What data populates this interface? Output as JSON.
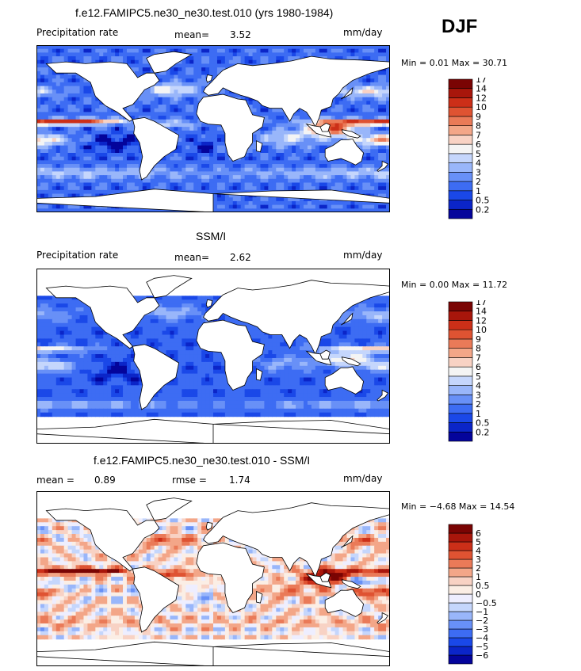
{
  "season": "DJF",
  "colors": {
    "seq": [
      "#04049b",
      "#0b25c8",
      "#1a48e8",
      "#3d6cf3",
      "#6890f7",
      "#99b6fa",
      "#c5d6fc",
      "#f4f4f4",
      "#f8d2c4",
      "#f3a688",
      "#ea7a58",
      "#df5332",
      "#cc2f18",
      "#a8160b",
      "#7a0403"
    ],
    "diff": [
      "#04049b",
      "#0b25c8",
      "#1a48e8",
      "#3d6cf3",
      "#6890f7",
      "#99b6fa",
      "#c5d6fc",
      "#eeeeff",
      "#fbeee5",
      "#f8d2c4",
      "#f3a688",
      "#ea7a58",
      "#df5332",
      "#cc2f18",
      "#a8160b",
      "#7a0403"
    ],
    "land": "#ffffff"
  },
  "panels": [
    {
      "title": "f.e12.FAMIPC5.ne30_ne30.test.010 (yrs 1980-1984)",
      "left_label": "Precipitation rate",
      "stat_label": "mean=",
      "stat_value": "3.52",
      "units": "mm/day",
      "min_text": "Min =    0.01 Max =   30.71"
    },
    {
      "title": "SSM/I",
      "left_label": "Precipitation rate",
      "stat_label": "mean=",
      "stat_value": "2.62",
      "units": "mm/day",
      "min_text": "Min =    0.00 Max =   11.72"
    },
    {
      "title": "f.e12.FAMIPC5.ne30_ne30.test.010 - SSM/I",
      "left_label": "mean =",
      "left_value": "0.89",
      "stat_label": "rmse =",
      "stat_value": "1.74",
      "units": "mm/day",
      "min_text": "Min =  −4.68 Max =   14.54"
    }
  ],
  "chart_data": [
    {
      "type": "heatmap",
      "title": "f.e12.FAMIPC5.ne30_ne30.test.010 (yrs 1980-1984)",
      "variable": "Precipitation rate",
      "units": "mm/day",
      "mean": 3.52,
      "min": 0.01,
      "max": 30.71,
      "colorbar_levels": [
        "0.2",
        "0.5",
        "1",
        "2",
        "3",
        "4",
        "5",
        "6",
        "7",
        "8",
        "9",
        "10",
        "12",
        "14",
        "17"
      ]
    },
    {
      "type": "heatmap",
      "title": "SSM/I",
      "variable": "Precipitation rate",
      "units": "mm/day",
      "mean": 2.62,
      "min": 0.0,
      "max": 11.72,
      "colorbar_levels": [
        "0.2",
        "0.5",
        "1",
        "2",
        "3",
        "4",
        "5",
        "6",
        "7",
        "8",
        "9",
        "10",
        "12",
        "14",
        "17"
      ]
    },
    {
      "type": "heatmap",
      "title": "f.e12.FAMIPC5.ne30_ne30.test.010 - SSM/I",
      "units": "mm/day",
      "mean": 0.89,
      "rmse": 1.74,
      "min": -4.68,
      "max": 14.54,
      "colorbar_levels": [
        "−6",
        "−5",
        "−4",
        "−3",
        "−2",
        "−1",
        "−0.5",
        "0",
        "0.5",
        "1",
        "2",
        "3",
        "4",
        "5",
        "6"
      ]
    }
  ]
}
